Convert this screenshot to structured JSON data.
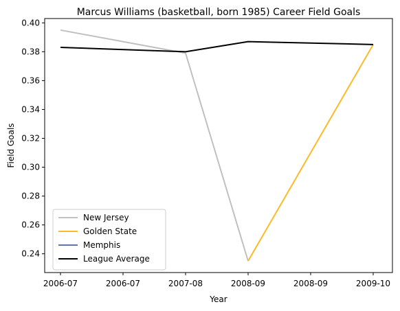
{
  "chart_data": {
    "type": "line",
    "title": "Marcus Williams (basketball, born 1985) Career Field Goals",
    "xlabel": "Year",
    "ylabel": "Field Goals",
    "x_ticks": [
      "2006-07",
      "2006-07",
      "2007-08",
      "2008-09",
      "2008-09",
      "2009-10"
    ],
    "y_ticks": [
      "0.24",
      "0.26",
      "0.28",
      "0.30",
      "0.32",
      "0.34",
      "0.36",
      "0.38",
      "0.40"
    ],
    "ylim": [
      0.227,
      0.403
    ],
    "grid": false,
    "legend_position": "lower-left",
    "series": [
      {
        "name": "New Jersey",
        "color": "#c0c0c0",
        "points": [
          {
            "x": "2006-07",
            "y": 0.395
          },
          {
            "x": "2007-08",
            "y": 0.379
          },
          {
            "x": "2008-09",
            "y": 0.235
          }
        ]
      },
      {
        "name": "Golden State",
        "color": "#fdb927",
        "points": [
          {
            "x": "2008-09",
            "y": 0.235
          },
          {
            "x": "2009-10",
            "y": 0.385
          }
        ]
      },
      {
        "name": "Memphis",
        "color": "#5d76a9",
        "points": []
      },
      {
        "name": "League Average",
        "color": "#000000",
        "points": [
          {
            "x": "2006-07",
            "y": 0.383
          },
          {
            "x": "2007-08",
            "y": 0.38
          },
          {
            "x": "2008-09",
            "y": 0.387
          },
          {
            "x": "2009-10",
            "y": 0.385
          }
        ]
      }
    ]
  }
}
